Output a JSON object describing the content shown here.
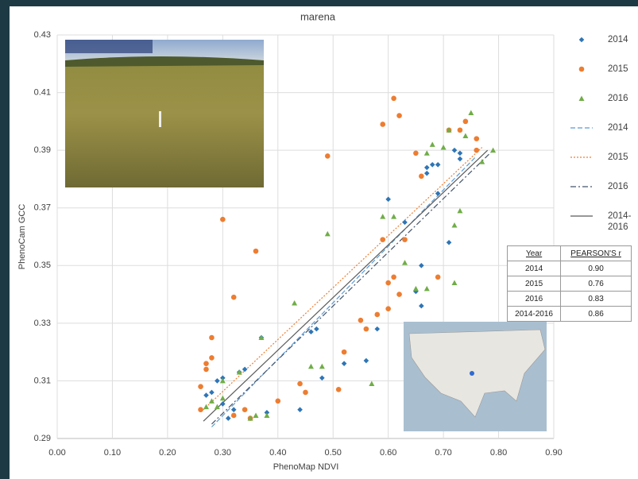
{
  "chart_data": {
    "type": "scatter",
    "title": "marena",
    "xlabel": "PhenoMap NDVI",
    "ylabel": "PhenoCam GCC",
    "xlim": [
      0,
      0.9
    ],
    "ylim": [
      0.29,
      0.43
    ],
    "grid": true,
    "xticks": [
      {
        "value": 0,
        "label": "0.00"
      },
      {
        "value": 0.1,
        "label": "0.10"
      },
      {
        "value": 0.2,
        "label": "0.20"
      },
      {
        "value": 0.3,
        "label": "0.30"
      },
      {
        "value": 0.4,
        "label": "0.40"
      },
      {
        "value": 0.5,
        "label": "0.50"
      },
      {
        "value": 0.6,
        "label": "0.60"
      },
      {
        "value": 0.7,
        "label": "0.70"
      },
      {
        "value": 0.8,
        "label": "0.80"
      },
      {
        "value": 0.9,
        "label": "0.90"
      }
    ],
    "yticks": [
      0.29,
      0.31,
      0.33,
      0.35,
      0.37,
      0.39,
      0.41,
      0.43
    ],
    "series": [
      {
        "name": "2014",
        "mode": "marker",
        "marker": "diamond",
        "color": "#2e75b6",
        "x": [
          0.27,
          0.28,
          0.29,
          0.3,
          0.3,
          0.31,
          0.32,
          0.33,
          0.34,
          0.37,
          0.38,
          0.44,
          0.46,
          0.47,
          0.48,
          0.52,
          0.56,
          0.58,
          0.6,
          0.63,
          0.65,
          0.66,
          0.66,
          0.67,
          0.67,
          0.68,
          0.69,
          0.69,
          0.71,
          0.72,
          0.73,
          0.73
        ],
        "values": [
          0.305,
          0.306,
          0.31,
          0.311,
          0.302,
          0.297,
          0.3,
          0.313,
          0.314,
          0.325,
          0.299,
          0.3,
          0.327,
          0.328,
          0.311,
          0.316,
          0.317,
          0.328,
          0.373,
          0.365,
          0.341,
          0.35,
          0.336,
          0.382,
          0.384,
          0.385,
          0.385,
          0.375,
          0.358,
          0.39,
          0.389,
          0.387
        ]
      },
      {
        "name": "2015",
        "mode": "marker",
        "marker": "circle",
        "color": "#ed7d31",
        "x": [
          0.26,
          0.27,
          0.27,
          0.28,
          0.28,
          0.26,
          0.3,
          0.32,
          0.32,
          0.34,
          0.35,
          0.36,
          0.4,
          0.44,
          0.45,
          0.49,
          0.51,
          0.52,
          0.55,
          0.56,
          0.58,
          0.59,
          0.59,
          0.6,
          0.6,
          0.61,
          0.61,
          0.62,
          0.62,
          0.63,
          0.65,
          0.66,
          0.69,
          0.71,
          0.73,
          0.74,
          0.76,
          0.76
        ],
        "values": [
          0.3,
          0.314,
          0.316,
          0.325,
          0.318,
          0.308,
          0.366,
          0.339,
          0.298,
          0.3,
          0.297,
          0.355,
          0.303,
          0.309,
          0.306,
          0.388,
          0.307,
          0.32,
          0.331,
          0.328,
          0.333,
          0.359,
          0.399,
          0.335,
          0.344,
          0.408,
          0.346,
          0.402,
          0.34,
          0.359,
          0.389,
          0.381,
          0.346,
          0.397,
          0.397,
          0.4,
          0.394,
          0.39
        ]
      },
      {
        "name": "2016",
        "mode": "marker",
        "marker": "triangle",
        "color": "#70ad47",
        "x": [
          0.27,
          0.28,
          0.29,
          0.3,
          0.3,
          0.33,
          0.35,
          0.36,
          0.37,
          0.38,
          0.43,
          0.46,
          0.48,
          0.49,
          0.57,
          0.59,
          0.61,
          0.63,
          0.65,
          0.67,
          0.67,
          0.68,
          0.7,
          0.71,
          0.72,
          0.72,
          0.73,
          0.74,
          0.75,
          0.77,
          0.79
        ],
        "values": [
          0.301,
          0.303,
          0.301,
          0.304,
          0.31,
          0.313,
          0.297,
          0.298,
          0.325,
          0.298,
          0.337,
          0.315,
          0.315,
          0.361,
          0.309,
          0.367,
          0.367,
          0.351,
          0.342,
          0.342,
          0.389,
          0.392,
          0.391,
          0.397,
          0.364,
          0.344,
          0.369,
          0.395,
          0.403,
          0.386,
          0.39
        ]
      },
      {
        "name": "2014",
        "mode": "line",
        "dash": "dashed",
        "color": "#5b9bd5",
        "x": [
          0.28,
          0.76
        ],
        "values": [
          0.294,
          0.388
        ]
      },
      {
        "name": "2015",
        "mode": "line",
        "dash": "dotted",
        "color": "#ed7d31",
        "x": [
          0.265,
          0.77
        ],
        "values": [
          0.3,
          0.391
        ]
      },
      {
        "name": "2016",
        "mode": "line",
        "dash": "dashdot",
        "color": "#44546a",
        "x": [
          0.28,
          0.79
        ],
        "values": [
          0.295,
          0.39
        ]
      },
      {
        "name": "2014-2016",
        "mode": "line",
        "dash": "solid",
        "color": "#595959",
        "x": [
          0.265,
          0.78
        ],
        "values": [
          0.296,
          0.39
        ]
      }
    ],
    "table": {
      "headers": [
        "Year",
        "PEARSON'S r"
      ],
      "rows": [
        [
          "2014",
          "0.90"
        ],
        [
          "2015",
          "0.76"
        ],
        [
          "2016",
          "0.83"
        ],
        [
          "2014-2016",
          "0.86"
        ]
      ]
    }
  }
}
